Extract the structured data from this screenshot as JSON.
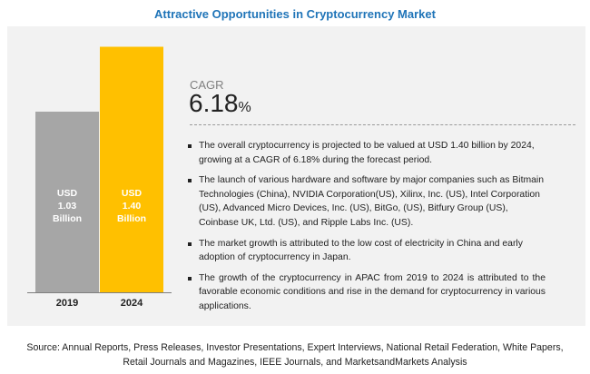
{
  "title": "Attractive Opportunities in Cryptocurrency Market",
  "chart_data": {
    "type": "bar",
    "categories": [
      "2019",
      "2024"
    ],
    "values": [
      1.03,
      1.4
    ],
    "unit": "USD Billion",
    "bar_labels": [
      [
        "USD",
        "1.03",
        "Billion"
      ],
      [
        "USD",
        "1.40",
        "Billion"
      ]
    ],
    "colors": [
      "#a6a6a6",
      "#ffc000"
    ],
    "title": "",
    "xlabel": "",
    "ylabel": "",
    "grid": false,
    "legend": "none"
  },
  "cagr": {
    "label": "CAGR",
    "value": "6.18",
    "suffix": "%"
  },
  "bullets": [
    "The overall cryptocurrency is projected to be valued at USD 1.40 billion by 2024, growing at a CAGR of 6.18% during the forecast period.",
    "The launch of various hardware and software by major companies such as Bitmain Technologies (China), NVIDIA Corporation(US), Xilinx, Inc. (US), Intel Corporation (US), Advanced Micro Devices, Inc. (US), BitGo, (US), Bitfury Group (US), Coinbase UK, Ltd. (US), and Ripple Labs Inc. (US).",
    "The market growth is attributed to the low cost of electricity in China and early adoption of cryptocurrency in Japan.",
    "The growth of the cryptocurrency in APAC from 2019 to 2024 is attributed to the favorable economic conditions and rise in the demand for cryptocurrency in various applications."
  ],
  "source": {
    "line1": "Source: Annual Reports, Press Releases, Investor Presentations, Expert Interviews, National Retail Federation, White Papers,",
    "line2": "Retail Journals and Magazines, IEEE Journals, and MarketsandMarkets Analysis"
  }
}
